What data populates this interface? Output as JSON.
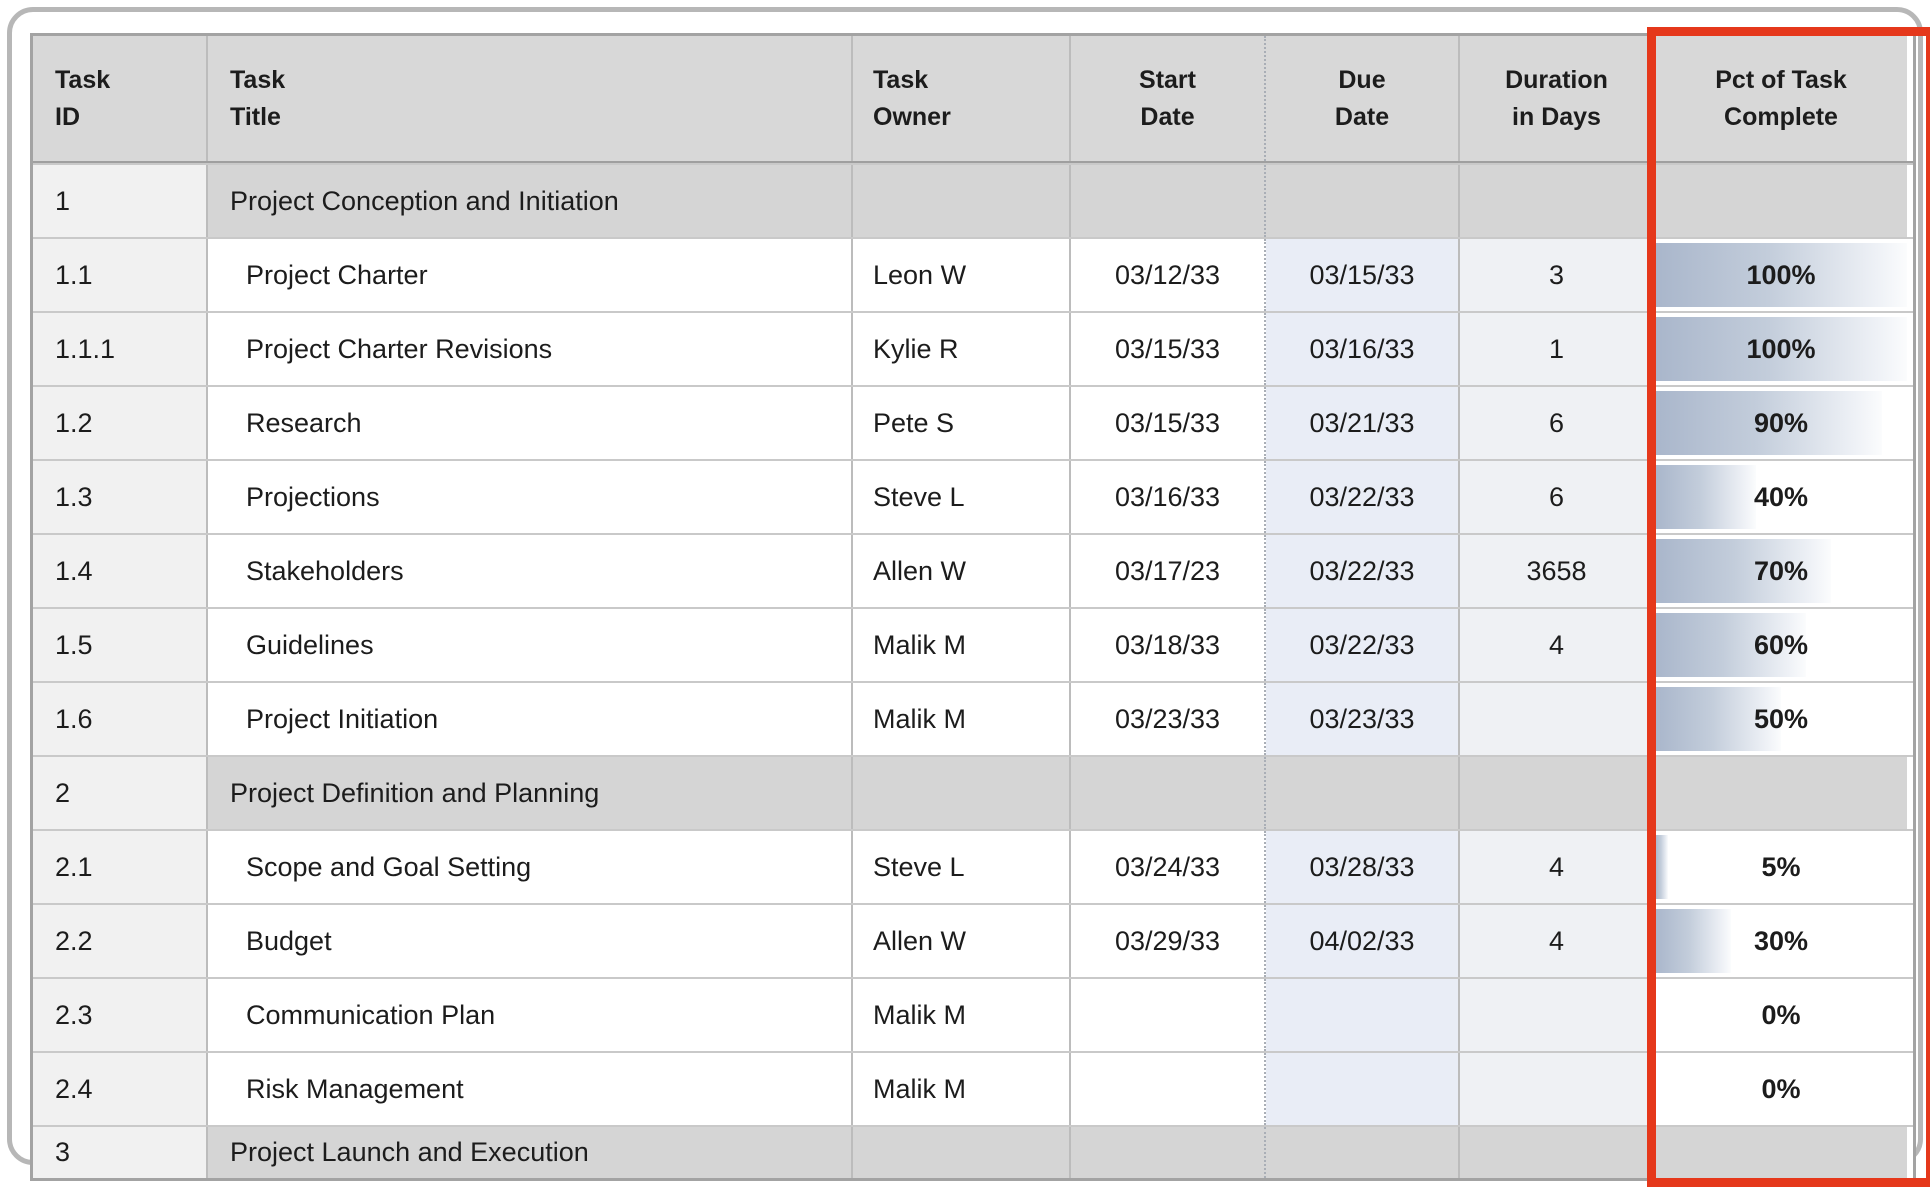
{
  "colors": {
    "highlight_red": "#e5381b",
    "header_bg": "#d8d8d8",
    "section_bg": "#d5d5d5",
    "id_cell_bg": "#f1f1f1",
    "due_cell_bg": "#e9edf6",
    "duration_cell_bg": "#eff1f4",
    "bar_gradient_start": "#a9b6cb",
    "bar_gradient_end": "#fbfcfd",
    "grid_line": "#bcbcbc"
  },
  "highlight": {
    "target_column": "Pct of Task Complete",
    "color": "#e5381b"
  },
  "table": {
    "columns": [
      {
        "key": "id",
        "label": "Task\nID"
      },
      {
        "key": "title",
        "label": "Task\nTitle"
      },
      {
        "key": "owner",
        "label": "Task\nOwner"
      },
      {
        "key": "start",
        "label": "Start\nDate"
      },
      {
        "key": "due",
        "label": "Due\nDate"
      },
      {
        "key": "duration",
        "label": "Duration\nin Days"
      },
      {
        "key": "pct",
        "label": "Pct of Task\nComplete"
      }
    ],
    "rows": [
      {
        "type": "section",
        "id": "1",
        "title": "Project Conception and Initiation",
        "owner": "",
        "start": "",
        "due": "",
        "duration": "",
        "pct": null,
        "pct_label": ""
      },
      {
        "type": "task",
        "id": "1.1",
        "title": "Project Charter",
        "owner": "Leon W",
        "start": "03/12/33",
        "due": "03/15/33",
        "duration": "3",
        "pct": 100,
        "pct_label": "100%"
      },
      {
        "type": "task",
        "id": "1.1.1",
        "title": "Project Charter Revisions",
        "owner": "Kylie R",
        "start": "03/15/33",
        "due": "03/16/33",
        "duration": "1",
        "pct": 100,
        "pct_label": "100%"
      },
      {
        "type": "task",
        "id": "1.2",
        "title": "Research",
        "owner": "Pete S",
        "start": "03/15/33",
        "due": "03/21/33",
        "duration": "6",
        "pct": 90,
        "pct_label": "90%"
      },
      {
        "type": "task",
        "id": "1.3",
        "title": "Projections",
        "owner": "Steve L",
        "start": "03/16/33",
        "due": "03/22/33",
        "duration": "6",
        "pct": 40,
        "pct_label": "40%"
      },
      {
        "type": "task",
        "id": "1.4",
        "title": "Stakeholders",
        "owner": "Allen W",
        "start": "03/17/23",
        "due": "03/22/33",
        "duration": "3658",
        "pct": 70,
        "pct_label": "70%"
      },
      {
        "type": "task",
        "id": "1.5",
        "title": "Guidelines",
        "owner": "Malik M",
        "start": "03/18/33",
        "due": "03/22/33",
        "duration": "4",
        "pct": 60,
        "pct_label": "60%"
      },
      {
        "type": "task",
        "id": "1.6",
        "title": "Project Initiation",
        "owner": "Malik M",
        "start": "03/23/33",
        "due": "03/23/33",
        "duration": "",
        "pct": 50,
        "pct_label": "50%"
      },
      {
        "type": "section",
        "id": "2",
        "title": "Project Definition and Planning",
        "owner": "",
        "start": "",
        "due": "",
        "duration": "",
        "pct": null,
        "pct_label": ""
      },
      {
        "type": "task",
        "id": "2.1",
        "title": "Scope and Goal Setting",
        "owner": "Steve L",
        "start": "03/24/33",
        "due": "03/28/33",
        "duration": "4",
        "pct": 5,
        "pct_label": "5%"
      },
      {
        "type": "task",
        "id": "2.2",
        "title": "Budget",
        "owner": "Allen W",
        "start": "03/29/33",
        "due": "04/02/33",
        "duration": "4",
        "pct": 30,
        "pct_label": "30%"
      },
      {
        "type": "task",
        "id": "2.3",
        "title": "Communication Plan",
        "owner": "Malik M",
        "start": "",
        "due": "",
        "duration": "",
        "pct": 0,
        "pct_label": "0%"
      },
      {
        "type": "task",
        "id": "2.4",
        "title": "Risk Management",
        "owner": "Malik M",
        "start": "",
        "due": "",
        "duration": "",
        "pct": 0,
        "pct_label": "0%"
      },
      {
        "type": "section",
        "id": "3",
        "title": "Project Launch and Execution",
        "owner": "",
        "start": "",
        "due": "",
        "duration": "",
        "pct": null,
        "pct_label": ""
      }
    ]
  }
}
